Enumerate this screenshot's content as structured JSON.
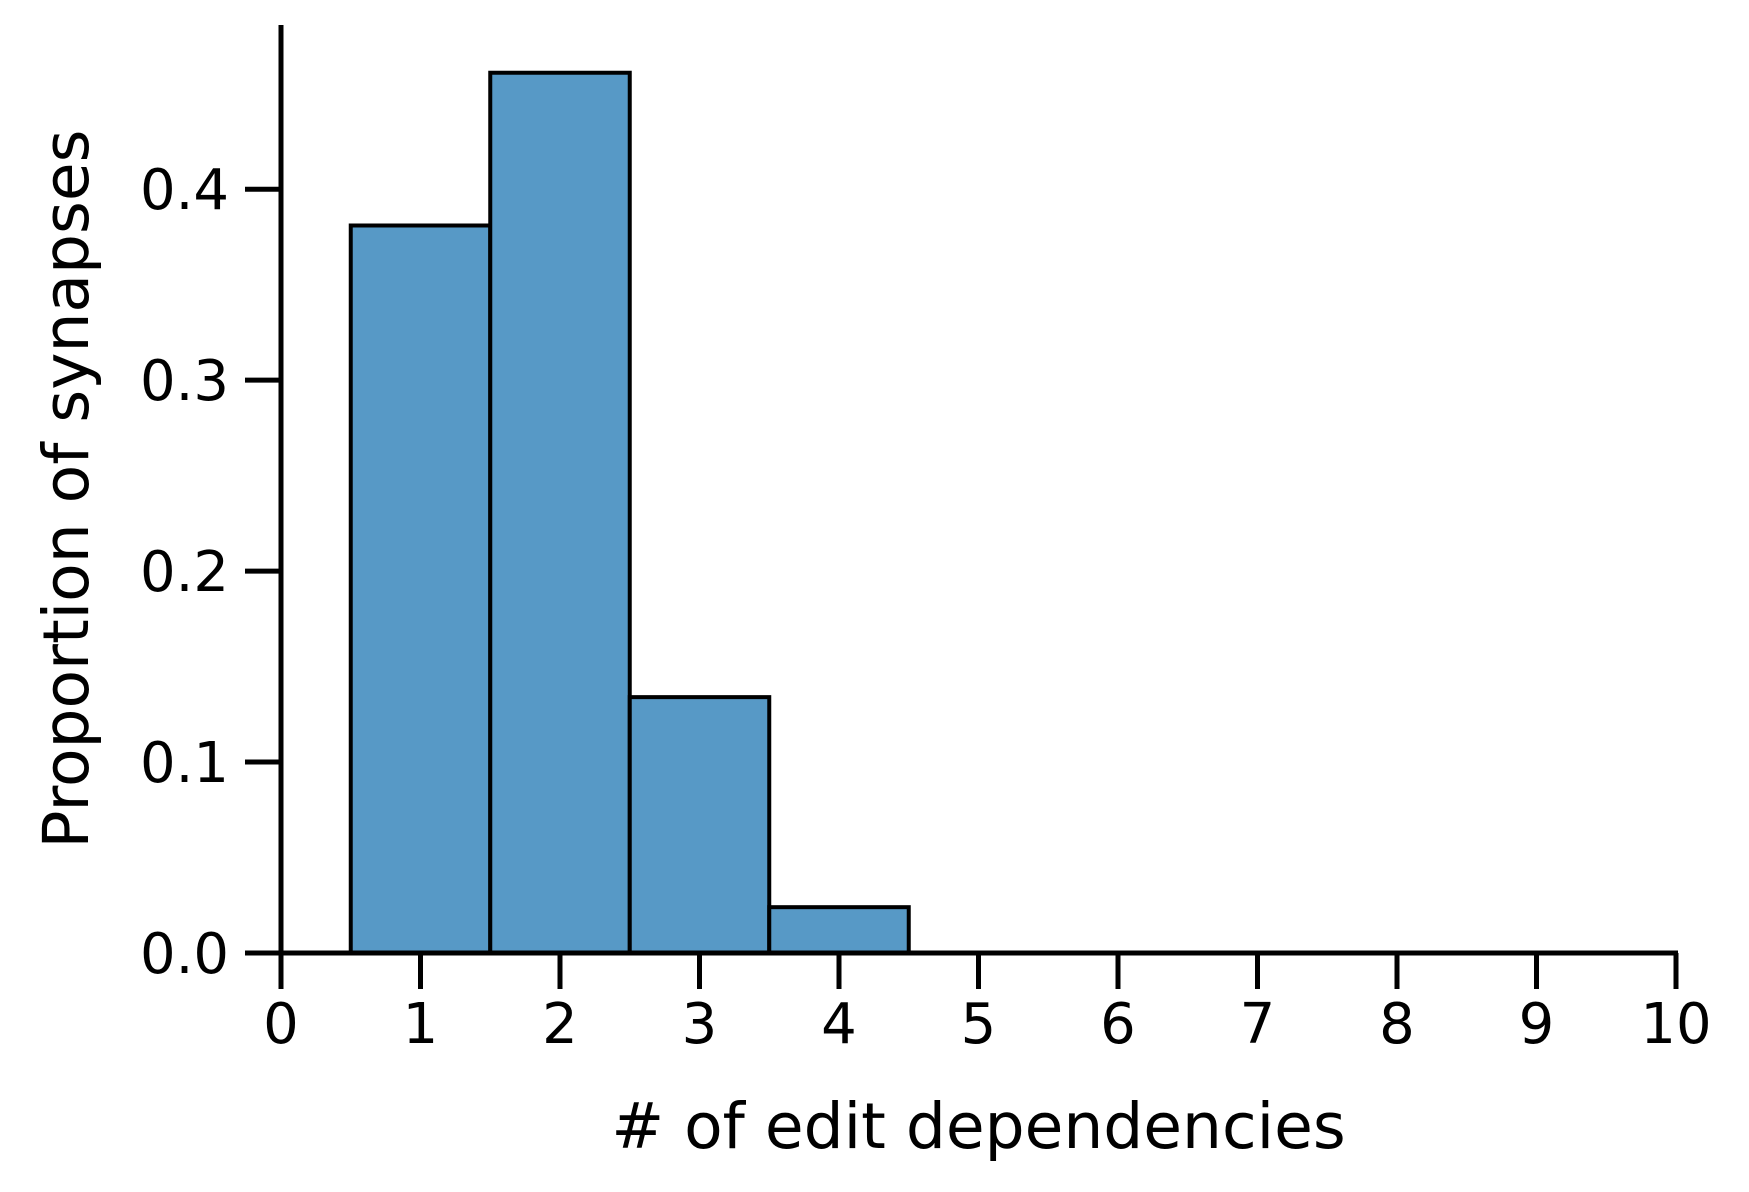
{
  "chart_data": {
    "type": "bar",
    "title": "",
    "xlabel": "# of edit dependencies",
    "ylabel": "Proportion of synapses",
    "categories": [
      "1",
      "2",
      "3",
      "4"
    ],
    "x": [
      1,
      2,
      3,
      4
    ],
    "values": [
      0.381,
      0.461,
      0.134,
      0.024
    ],
    "bin_width": 1,
    "xlim": [
      0,
      10
    ],
    "ylim": [
      0,
      0.486
    ],
    "xticks": [
      "0",
      "1",
      "2",
      "3",
      "4",
      "5",
      "6",
      "7",
      "8",
      "9",
      "10"
    ],
    "yticks": [
      "0.0",
      "0.1",
      "0.2",
      "0.3",
      "0.4"
    ],
    "grid": false,
    "legend": "none",
    "bar_color": "#5799C6",
    "edge_color": "#000000"
  }
}
